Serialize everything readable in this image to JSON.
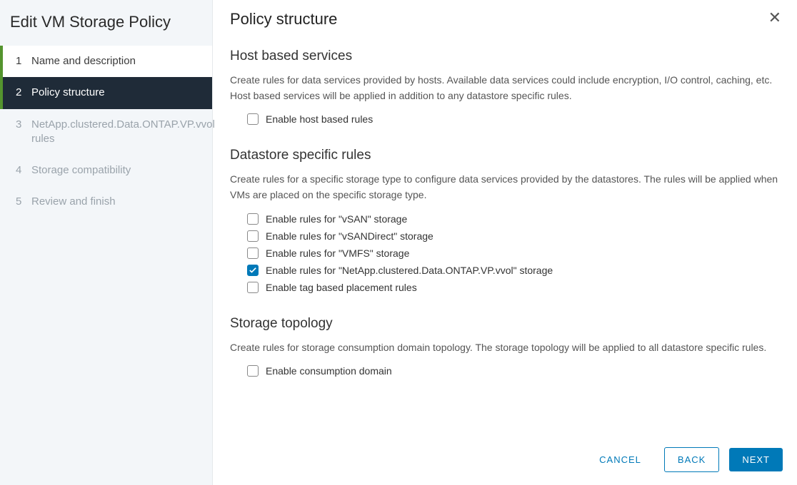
{
  "sidebar": {
    "title": "Edit VM Storage Policy",
    "steps": [
      {
        "num": "1",
        "label": "Name and description",
        "state": "completed"
      },
      {
        "num": "2",
        "label": "Policy structure",
        "state": "active"
      },
      {
        "num": "3",
        "label": "NetApp.clustered.Data.ONTAP.VP.vvol rules",
        "state": "pending"
      },
      {
        "num": "4",
        "label": "Storage compatibility",
        "state": "pending"
      },
      {
        "num": "5",
        "label": "Review and finish",
        "state": "pending"
      }
    ]
  },
  "main": {
    "title": "Policy structure",
    "sections": {
      "host": {
        "heading": "Host based services",
        "desc": "Create rules for data services provided by hosts. Available data services could include encryption, I/O control, caching, etc. Host based services will be applied in addition to any datastore specific rules.",
        "options": [
          {
            "label": "Enable host based rules",
            "checked": false
          }
        ]
      },
      "datastore": {
        "heading": "Datastore specific rules",
        "desc": "Create rules for a specific storage type to configure data services provided by the datastores. The rules will be applied when VMs are placed on the specific storage type.",
        "options": [
          {
            "label": "Enable rules for \"vSAN\" storage",
            "checked": false
          },
          {
            "label": "Enable rules for \"vSANDirect\" storage",
            "checked": false
          },
          {
            "label": "Enable rules for \"VMFS\" storage",
            "checked": false
          },
          {
            "label": "Enable rules for \"NetApp.clustered.Data.ONTAP.VP.vvol\" storage",
            "checked": true
          },
          {
            "label": "Enable tag based placement rules",
            "checked": false
          }
        ]
      },
      "topology": {
        "heading": "Storage topology",
        "desc": "Create rules for storage consumption domain topology. The storage topology will be applied to all datastore specific rules.",
        "options": [
          {
            "label": "Enable consumption domain",
            "checked": false
          }
        ]
      }
    }
  },
  "footer": {
    "cancel": "CANCEL",
    "back": "BACK",
    "next": "NEXT"
  }
}
